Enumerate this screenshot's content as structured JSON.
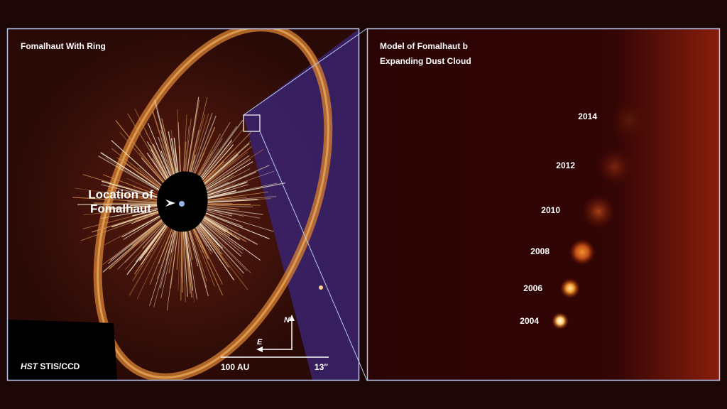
{
  "left_panel": {
    "title": "Fomalhaut With Ring",
    "star_label": [
      "Location of",
      "Fomalhaut"
    ],
    "instrument": {
      "prefix": "HST",
      "text": "STIS/CCD"
    },
    "scale_bar": {
      "distance": "100 AU",
      "angle": "13″"
    },
    "compass": {
      "north": "N",
      "east": "E"
    }
  },
  "right_panel": {
    "title": [
      "Model of Fomalhaut b",
      "Expanding Dust Cloud"
    ],
    "epochs": [
      "2014",
      "2012",
      "2010",
      "2008",
      "2006",
      "2004"
    ]
  }
}
